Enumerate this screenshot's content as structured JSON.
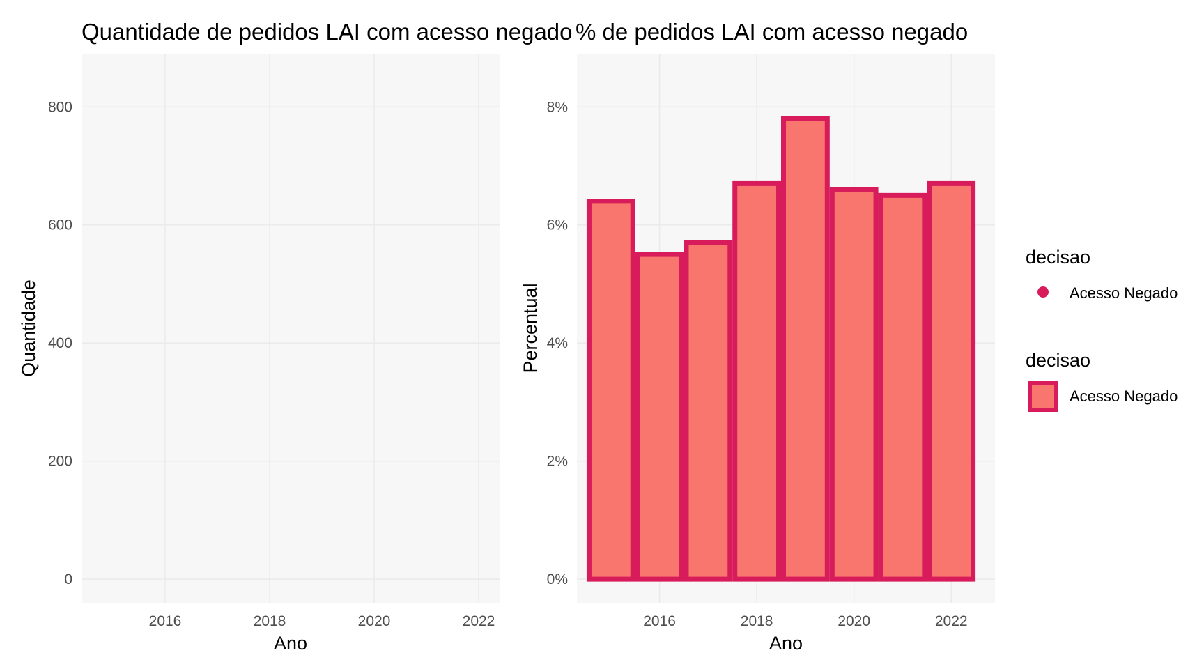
{
  "chart_data": [
    {
      "type": "bar",
      "title": "Quantidade de pedidos LAI com acesso negado",
      "xlabel": "Ano",
      "ylabel": "Quantidade",
      "x_ticks": [
        "2016",
        "2018",
        "2020",
        "2022"
      ],
      "y_ticks": [
        "0",
        "200",
        "400",
        "600",
        "800"
      ],
      "xlim": [
        2014.4,
        2022.4
      ],
      "ylim": [
        -40,
        890
      ],
      "grid": true,
      "series": []
    },
    {
      "type": "bar",
      "title": "% de pedidos LAI com acesso negado",
      "xlabel": "Ano",
      "ylabel": "Percentual",
      "x_ticks": [
        "2016",
        "2018",
        "2020",
        "2022"
      ],
      "y_ticks": [
        "0%",
        "2%",
        "4%",
        "6%",
        "8%"
      ],
      "xlim": [
        2014.3,
        2022.9
      ],
      "ylim": [
        -0.4,
        8.9
      ],
      "grid": true,
      "categories": [
        "2015",
        "2016",
        "2017",
        "2018",
        "2019",
        "2020",
        "2021",
        "2022"
      ],
      "series": [
        {
          "name": "Acesso Negado",
          "values": [
            6.4,
            5.5,
            5.7,
            6.7,
            7.8,
            6.6,
            6.5,
            6.7
          ]
        }
      ],
      "fill_color": "#f8766d",
      "border_color": "#d81b5a"
    }
  ],
  "legend": {
    "placement": "right",
    "groups": [
      {
        "title": "decisao",
        "key": "point",
        "label": "Acesso Negado",
        "color": "#d81b5a"
      },
      {
        "title": "decisao",
        "key": "box",
        "label": "Acesso Negado",
        "fill": "#f8766d",
        "color": "#d81b5a"
      }
    ]
  },
  "colors": {
    "panel_bg": "#f7f7f7",
    "grid": "#ebebeb"
  }
}
